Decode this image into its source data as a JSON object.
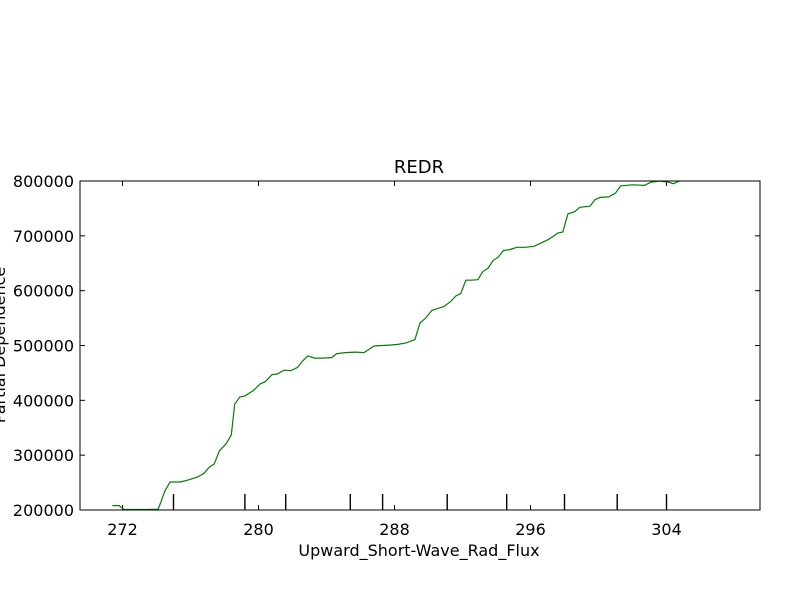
{
  "chart_data": {
    "type": "line",
    "title": "REDR",
    "xlabel": "Upward_Short-Wave_Rad_Flux",
    "ylabel": "Partial Dependence",
    "xlim": [
      269.5,
      309.5
    ],
    "ylim": [
      200000,
      800000
    ],
    "x_ticks": [
      272,
      280,
      288,
      296,
      304
    ],
    "x_tick_labels": [
      "272",
      "280",
      "288",
      "296",
      "304"
    ],
    "y_ticks": [
      200000,
      300000,
      400000,
      500000,
      600000,
      700000,
      800000
    ],
    "y_tick_labels": [
      "200000",
      "300000",
      "400000",
      "500000",
      "600000",
      "700000",
      "800000"
    ],
    "rug": [
      275.0,
      279.2,
      281.6,
      285.4,
      287.3,
      291.1,
      294.6,
      298.0,
      301.1,
      304.0
    ],
    "grid": false,
    "series": [
      {
        "color": "#008000",
        "points": [
          [
            271.4,
            208000
          ],
          [
            271.8,
            208000
          ],
          [
            272.1,
            201000
          ],
          [
            272.6,
            201000
          ],
          [
            273.4,
            201000
          ],
          [
            274.1,
            201500
          ],
          [
            274.5,
            235000
          ],
          [
            274.8,
            251000
          ],
          [
            275.4,
            251000
          ],
          [
            275.9,
            255000
          ],
          [
            276.4,
            260000
          ],
          [
            276.8,
            267000
          ],
          [
            277.1,
            278000
          ],
          [
            277.4,
            284000
          ],
          [
            277.7,
            308000
          ],
          [
            278.1,
            321000
          ],
          [
            278.4,
            337000
          ],
          [
            278.6,
            393000
          ],
          [
            278.9,
            406000
          ],
          [
            279.2,
            408000
          ],
          [
            279.7,
            418000
          ],
          [
            280.1,
            430000
          ],
          [
            280.4,
            434000
          ],
          [
            280.8,
            447000
          ],
          [
            281.1,
            448000
          ],
          [
            281.5,
            455000
          ],
          [
            281.9,
            454000
          ],
          [
            282.3,
            460000
          ],
          [
            282.6,
            472000
          ],
          [
            282.9,
            481000
          ],
          [
            283.3,
            477000
          ],
          [
            283.8,
            477000
          ],
          [
            284.3,
            478000
          ],
          [
            284.6,
            485000
          ],
          [
            285.1,
            487000
          ],
          [
            285.7,
            488000
          ],
          [
            286.2,
            487000
          ],
          [
            286.8,
            499000
          ],
          [
            287.3,
            500000
          ],
          [
            287.8,
            501000
          ],
          [
            288.2,
            502000
          ],
          [
            288.7,
            505000
          ],
          [
            289.2,
            511000
          ],
          [
            289.5,
            541000
          ],
          [
            289.8,
            549000
          ],
          [
            290.2,
            564000
          ],
          [
            290.6,
            568000
          ],
          [
            290.9,
            571000
          ],
          [
            291.3,
            580000
          ],
          [
            291.6,
            590000
          ],
          [
            291.9,
            595000
          ],
          [
            292.2,
            619000
          ],
          [
            292.5,
            619000
          ],
          [
            292.9,
            620000
          ],
          [
            293.2,
            635000
          ],
          [
            293.5,
            641000
          ],
          [
            293.8,
            655000
          ],
          [
            294.1,
            661000
          ],
          [
            294.4,
            673000
          ],
          [
            294.8,
            675000
          ],
          [
            295.2,
            679000
          ],
          [
            295.7,
            679000
          ],
          [
            296.2,
            681000
          ],
          [
            296.7,
            688000
          ],
          [
            297.1,
            694000
          ],
          [
            297.6,
            705000
          ],
          [
            297.9,
            707000
          ],
          [
            298.2,
            740000
          ],
          [
            298.6,
            744000
          ],
          [
            298.9,
            752000
          ],
          [
            299.5,
            754000
          ],
          [
            299.8,
            766000
          ],
          [
            300.1,
            770000
          ],
          [
            300.6,
            771000
          ],
          [
            301.0,
            778000
          ],
          [
            301.3,
            791000
          ],
          [
            302.0,
            793000
          ],
          [
            302.7,
            792000
          ],
          [
            303.1,
            798000
          ],
          [
            303.6,
            800000
          ],
          [
            304.1,
            798000
          ],
          [
            304.4,
            795000
          ],
          [
            304.9,
            802000
          ]
        ]
      }
    ]
  }
}
